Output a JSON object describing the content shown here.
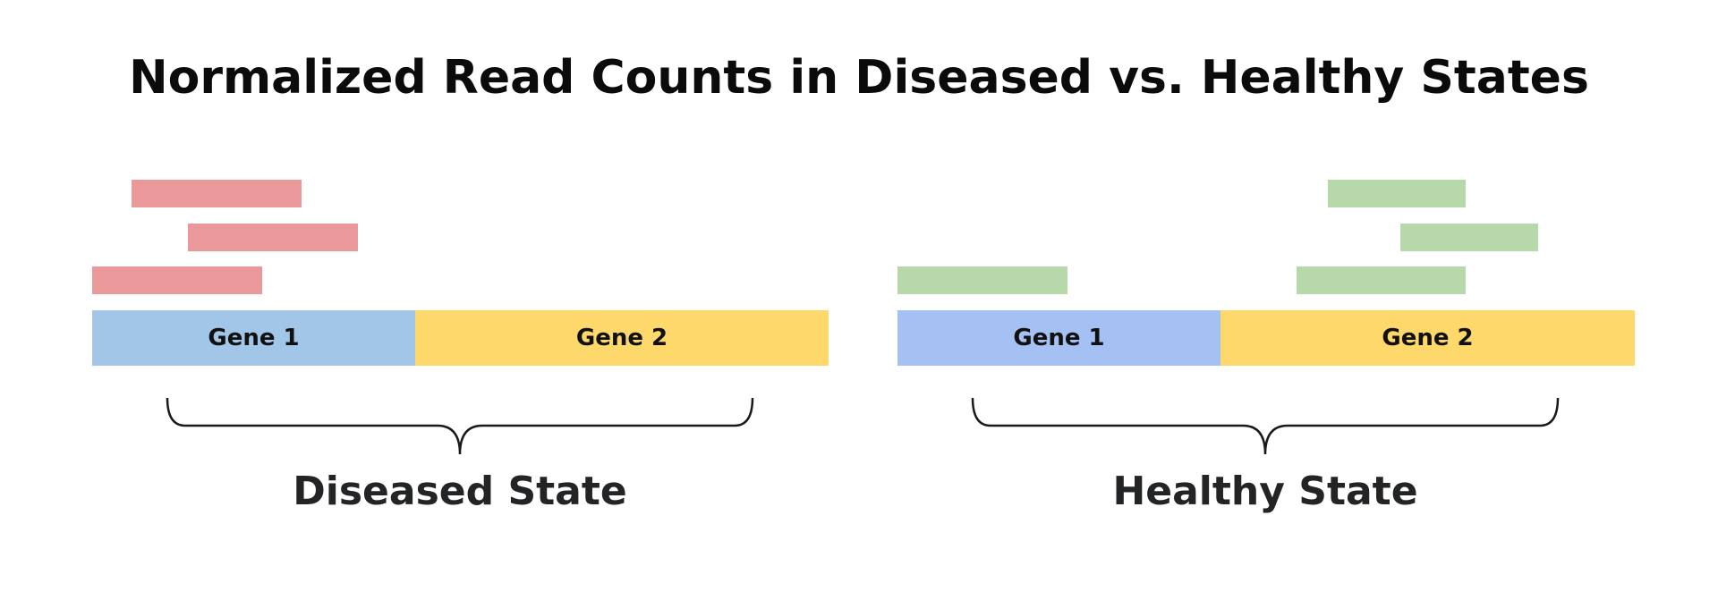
{
  "title": "Normalized Read Counts in Diseased vs. Healthy States",
  "colors": {
    "disease_read": "#eb989b",
    "healthy_read": "#b7d9aa",
    "gene1_diseased": "#a1c6e8",
    "gene1_healthy": "#a5c0f2",
    "gene2": "#fed86a"
  },
  "panels": {
    "diseased": {
      "label": "Diseased State",
      "genes": [
        "Gene 1",
        "Gene 2"
      ]
    },
    "healthy": {
      "label": "Healthy State",
      "genes": [
        "Gene 1",
        "Gene 2"
      ]
    }
  }
}
